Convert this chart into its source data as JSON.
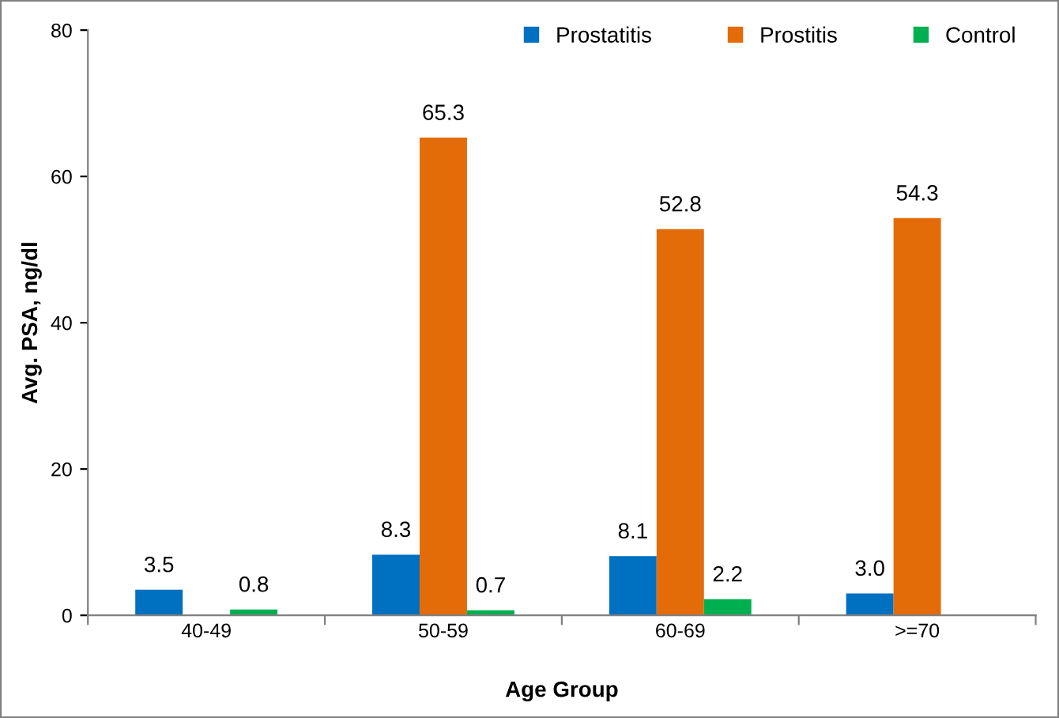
{
  "chart_data": {
    "type": "bar",
    "xlabel": "Age Group",
    "ylabel": "Avg. PSA, ng/dl",
    "categories": [
      "40-49",
      "50-59",
      "60-69",
      ">=70"
    ],
    "series": [
      {
        "name": "Prostatitis",
        "color": "#0070c0",
        "values": [
          3.5,
          8.3,
          8.1,
          3.0
        ],
        "value_labels": [
          "3.5",
          "8.3",
          "8.1",
          "3.0"
        ]
      },
      {
        "name": "Prostitis",
        "color": "#e36c09",
        "values": [
          null,
          65.3,
          52.8,
          54.3
        ],
        "value_labels": [
          null,
          "65.3",
          "52.8",
          "54.3"
        ]
      },
      {
        "name": "Control",
        "color": "#00b050",
        "values": [
          0.8,
          0.7,
          2.2,
          null
        ],
        "value_labels": [
          "0.8",
          "0.7",
          "2.2",
          null
        ]
      }
    ],
    "ylim": [
      0,
      80
    ],
    "yticks": [
      0,
      20,
      40,
      60,
      80
    ],
    "grid": false,
    "legend": "top right"
  }
}
